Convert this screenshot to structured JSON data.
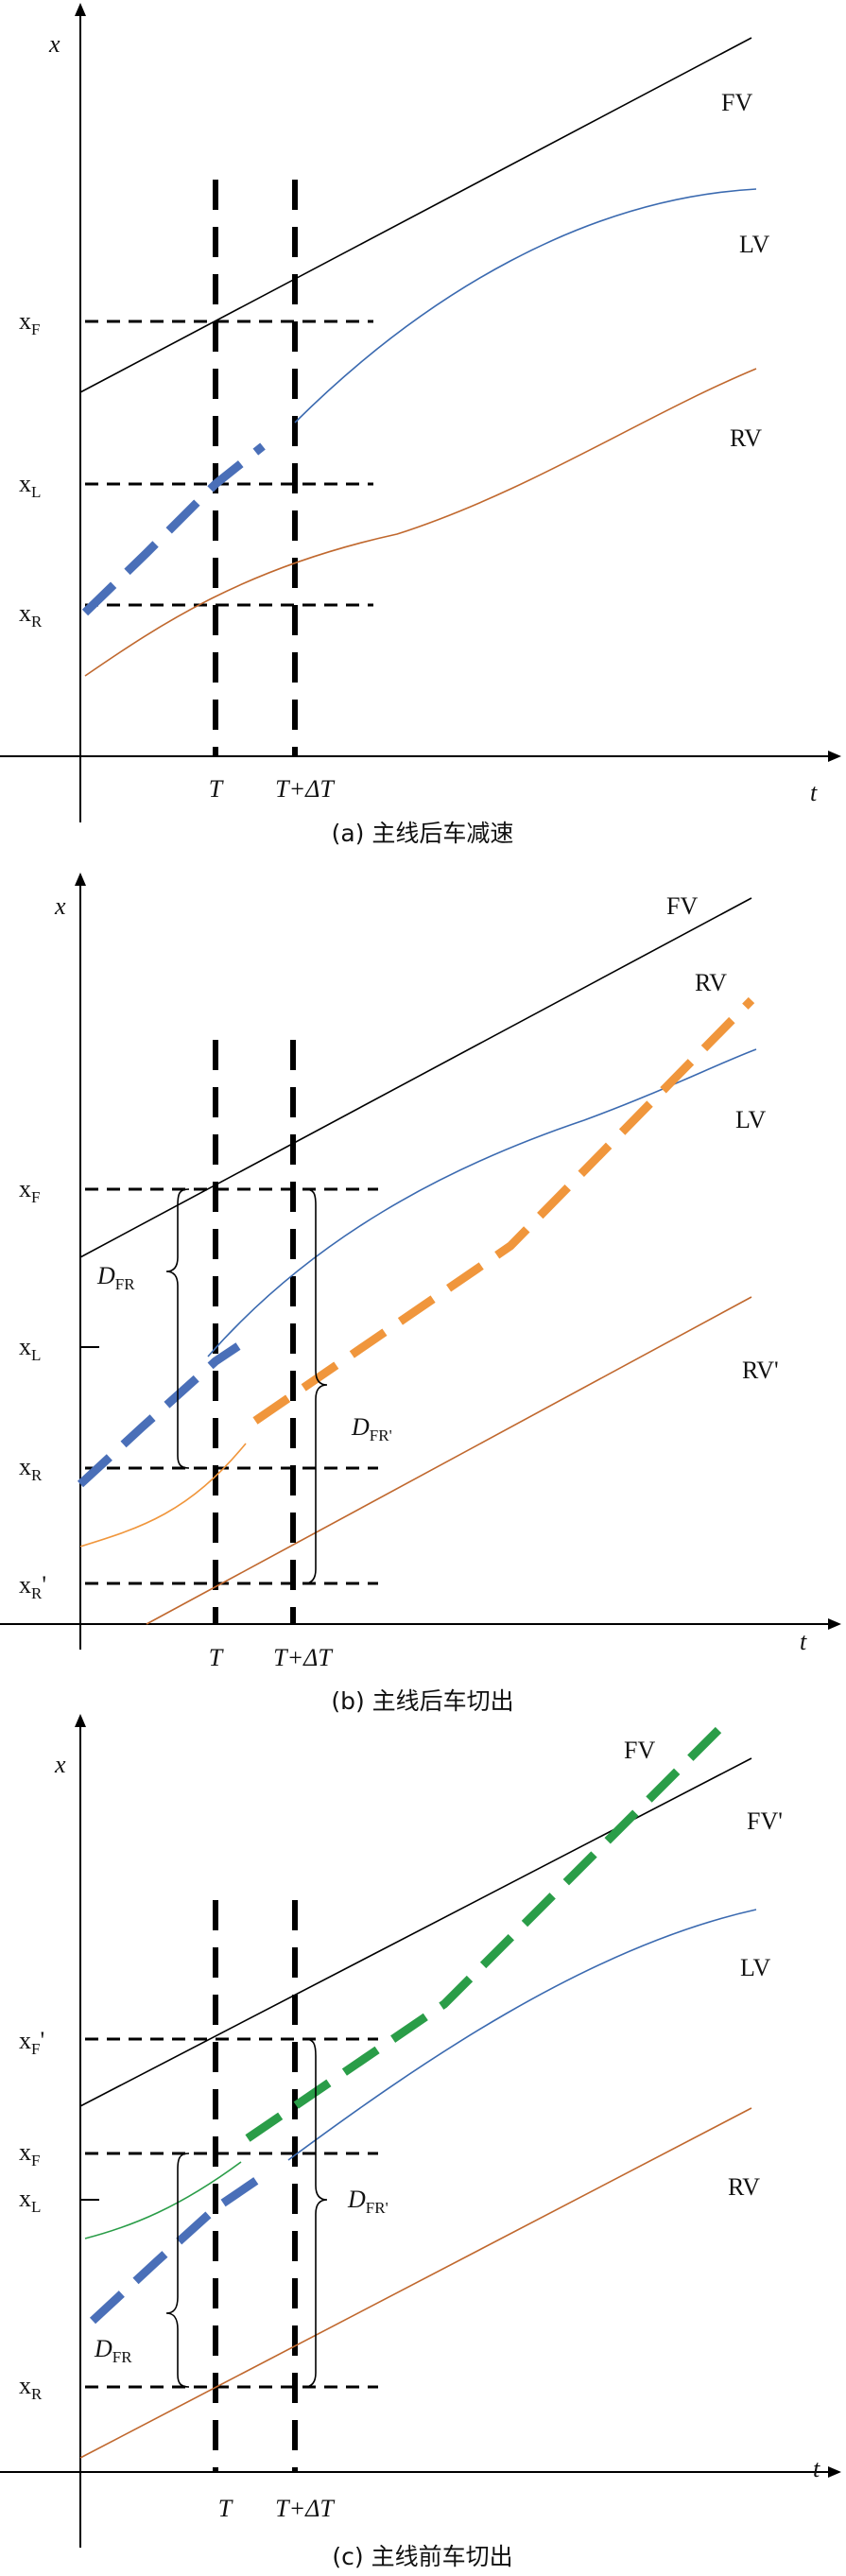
{
  "colors": {
    "axis": "#000000",
    "fv": "#000000",
    "lv": "#3b6ab0",
    "rv": "#c0682e",
    "rv_orange": "#f0963c",
    "fv_green": "#2a9d48",
    "lead_blue": "#4a6fb8",
    "rv_prime": "#c0682e"
  },
  "panels": [
    {
      "id": "a",
      "caption": "(a) 主线后车减速",
      "axis": {
        "x_label": "x",
        "t_label": "t"
      },
      "time_labels": {
        "t": "T",
        "t_dt": "T+ΔT"
      },
      "y_ticks": [
        {
          "main": "x",
          "sub": "F",
          "prime": ""
        },
        {
          "main": "x",
          "sub": "L",
          "prime": ""
        },
        {
          "main": "x",
          "sub": "R",
          "prime": ""
        }
      ],
      "curve_labels": [
        "FV",
        "LV",
        "RV"
      ],
      "distance_labels": []
    },
    {
      "id": "b",
      "caption": "(b) 主线后车切出",
      "axis": {
        "x_label": "x",
        "t_label": "t"
      },
      "time_labels": {
        "t": "T",
        "t_dt": "T+ΔT"
      },
      "y_ticks": [
        {
          "main": "x",
          "sub": "F",
          "prime": ""
        },
        {
          "main": "x",
          "sub": "L",
          "prime": ""
        },
        {
          "main": "x",
          "sub": "R",
          "prime": ""
        },
        {
          "main": "x",
          "sub": "R",
          "prime": "'"
        }
      ],
      "curve_labels": [
        "FV",
        "RV",
        "LV",
        "RV'"
      ],
      "distance_labels": [
        {
          "main": "D",
          "sub": "FR"
        },
        {
          "main": "D",
          "sub": "FR'"
        }
      ]
    },
    {
      "id": "c",
      "caption": "(c) 主线前车切出",
      "axis": {
        "x_label": "x",
        "t_label": "t"
      },
      "time_labels": {
        "t": "T",
        "t_dt": "T+ΔT"
      },
      "y_ticks": [
        {
          "main": "x",
          "sub": "F",
          "prime": "'"
        },
        {
          "main": "x",
          "sub": "F",
          "prime": ""
        },
        {
          "main": "x",
          "sub": "L",
          "prime": ""
        },
        {
          "main": "x",
          "sub": "R",
          "prime": ""
        }
      ],
      "curve_labels": [
        "FV",
        "FV'",
        "LV",
        "RV"
      ],
      "distance_labels": [
        {
          "main": "D",
          "sub": "FR'"
        },
        {
          "main": "D",
          "sub": "FR"
        }
      ]
    }
  ]
}
